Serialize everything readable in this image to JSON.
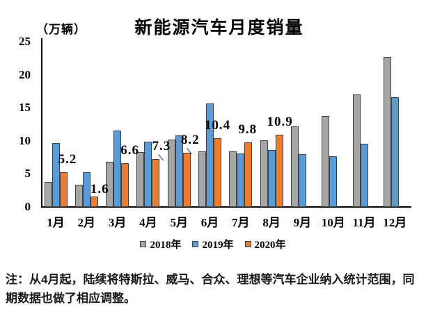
{
  "chart_data": {
    "type": "bar",
    "title": "新能源汽车月度销量",
    "unit_label": "（万辆）",
    "xlabel": "",
    "ylabel": "万辆",
    "categories": [
      "1月",
      "2月",
      "3月",
      "4月",
      "5月",
      "6月",
      "7月",
      "8月",
      "9月",
      "10月",
      "11月",
      "12月"
    ],
    "series": [
      {
        "name": "2018年",
        "color": "#a6a6a6",
        "values": [
          3.8,
          3.4,
          6.8,
          8.3,
          10.2,
          8.4,
          8.4,
          10.1,
          12.2,
          13.8,
          17.0,
          22.7
        ]
      },
      {
        "name": "2019年",
        "color": "#5b9bd5",
        "values": [
          9.7,
          5.3,
          11.6,
          9.9,
          10.8,
          15.6,
          8.1,
          8.6,
          8.0,
          7.7,
          9.6,
          16.6
        ]
      },
      {
        "name": "2020年",
        "color": "#ed7d31",
        "values": [
          5.2,
          1.6,
          6.6,
          7.3,
          8.2,
          10.4,
          9.8,
          10.9,
          null,
          null,
          null,
          null
        ]
      }
    ],
    "data_labels": {
      "series": "2020年",
      "labels": [
        "5.2",
        "1.6",
        "6.6",
        "7.3",
        "8.2",
        "10.4",
        "9.8",
        "10.9"
      ]
    },
    "ylim": [
      0,
      25
    ],
    "yticks": [
      0,
      5,
      10,
      15,
      20,
      25
    ],
    "grid": false,
    "legend_position": "bottom"
  },
  "footnote": "注：从4月起，陆续将特斯拉、威马、合众、理想等汽车企业纳入统计范围，同期数据也做了相应调整。"
}
